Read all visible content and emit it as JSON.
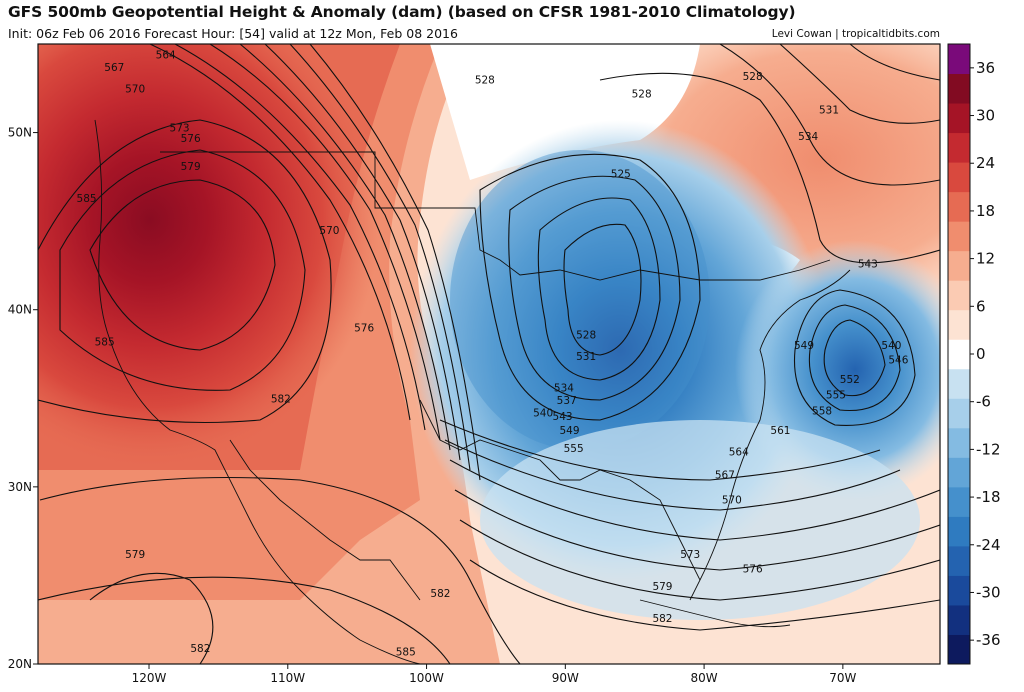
{
  "header": {
    "title": "GFS 500mb Geopotential Height & Anomaly (dam) (based on CFSR 1981-2010 Climatology)",
    "subtitle": "Init: 06z Feb 06 2016   Forecast Hour: [54]   valid at 12z Mon, Feb 08 2016",
    "credit": "Levi Cowan | tropicaltidbits.com"
  },
  "map": {
    "lon_range": [
      -128,
      -63
    ],
    "lat_range": [
      20,
      55
    ],
    "lon_ticks": [
      {
        "value": -120,
        "label": "120W"
      },
      {
        "value": -110,
        "label": "110W"
      },
      {
        "value": -100,
        "label": "100W"
      },
      {
        "value": -90,
        "label": "90W"
      },
      {
        "value": -80,
        "label": "80W"
      },
      {
        "value": -70,
        "label": "70W"
      }
    ],
    "lat_ticks": [
      {
        "value": 20,
        "label": "20N"
      },
      {
        "value": 30,
        "label": "30N"
      },
      {
        "value": 40,
        "label": "40N"
      },
      {
        "value": 50,
        "label": "50N"
      }
    ]
  },
  "colorbar": {
    "ticks": [
      {
        "value": 36,
        "label": "36"
      },
      {
        "value": 30,
        "label": "30"
      },
      {
        "value": 24,
        "label": "24"
      },
      {
        "value": 18,
        "label": "18"
      },
      {
        "value": 12,
        "label": "12"
      },
      {
        "value": 6,
        "label": "6"
      },
      {
        "value": 0,
        "label": "0"
      },
      {
        "value": -6,
        "label": "-6"
      },
      {
        "value": -12,
        "label": "-12"
      },
      {
        "value": -18,
        "label": "-18"
      },
      {
        "value": -24,
        "label": "-24"
      },
      {
        "value": -30,
        "label": "-30"
      },
      {
        "value": -36,
        "label": "-36"
      }
    ],
    "colors": [
      "#0d1a5e",
      "#12307f",
      "#1a4a9c",
      "#2463b0",
      "#2f7bc0",
      "#4590cc",
      "#62a5d7",
      "#84bbe2",
      "#a7cfea",
      "#c8e1f1",
      "#ffffff",
      "#fde3d3",
      "#fbcbb3",
      "#f6ad8f",
      "#f08d6e",
      "#e66b53",
      "#d9493e",
      "#c42a30",
      "#a51426",
      "#820b22",
      "#7a0a7a"
    ],
    "range": [
      -39,
      39
    ]
  },
  "contour_labels": [
    {
      "lon": -122.5,
      "lat": 53.7,
      "text": "567"
    },
    {
      "lon": -118.8,
      "lat": 54.4,
      "text": "564"
    },
    {
      "lon": -121.0,
      "lat": 52.5,
      "text": "570"
    },
    {
      "lon": -117.8,
      "lat": 50.3,
      "text": "573"
    },
    {
      "lon": -117.0,
      "lat": 49.7,
      "text": "576"
    },
    {
      "lon": -117.0,
      "lat": 48.1,
      "text": "579"
    },
    {
      "lon": -124.5,
      "lat": 46.3,
      "text": "585"
    },
    {
      "lon": -107.0,
      "lat": 44.5,
      "text": "570"
    },
    {
      "lon": -104.5,
      "lat": 39.0,
      "text": "576"
    },
    {
      "lon": -110.5,
      "lat": 35.0,
      "text": "582"
    },
    {
      "lon": -123.2,
      "lat": 38.2,
      "text": "585"
    },
    {
      "lon": -121.0,
      "lat": 26.2,
      "text": "579"
    },
    {
      "lon": -116.3,
      "lat": 20.9,
      "text": "582"
    },
    {
      "lon": -101.5,
      "lat": 20.7,
      "text": "585"
    },
    {
      "lon": -99.0,
      "lat": 24.0,
      "text": "582"
    },
    {
      "lon": -95.8,
      "lat": 53.0,
      "text": "528"
    },
    {
      "lon": -84.5,
      "lat": 52.2,
      "text": "528"
    },
    {
      "lon": -86.0,
      "lat": 47.7,
      "text": "525"
    },
    {
      "lon": -88.5,
      "lat": 38.6,
      "text": "528"
    },
    {
      "lon": -88.5,
      "lat": 37.4,
      "text": "531"
    },
    {
      "lon": -90.1,
      "lat": 35.6,
      "text": "534"
    },
    {
      "lon": -89.9,
      "lat": 34.9,
      "text": "537"
    },
    {
      "lon": -91.6,
      "lat": 34.2,
      "text": "540"
    },
    {
      "lon": -90.2,
      "lat": 34.0,
      "text": "543"
    },
    {
      "lon": -89.7,
      "lat": 33.2,
      "text": "549"
    },
    {
      "lon": -89.4,
      "lat": 32.2,
      "text": "555"
    },
    {
      "lon": -66.5,
      "lat": 38.0,
      "text": "540"
    },
    {
      "lon": -66.0,
      "lat": 37.2,
      "text": "546"
    },
    {
      "lon": -72.8,
      "lat": 38.0,
      "text": "549"
    },
    {
      "lon": -69.5,
      "lat": 36.1,
      "text": "552"
    },
    {
      "lon": -70.5,
      "lat": 35.2,
      "text": "555"
    },
    {
      "lon": -71.5,
      "lat": 34.3,
      "text": "558"
    },
    {
      "lon": -74.5,
      "lat": 33.2,
      "text": "561"
    },
    {
      "lon": -77.5,
      "lat": 32.0,
      "text": "564"
    },
    {
      "lon": -78.5,
      "lat": 30.7,
      "text": "567"
    },
    {
      "lon": -78.0,
      "lat": 29.3,
      "text": "570"
    },
    {
      "lon": -81.0,
      "lat": 26.2,
      "text": "573"
    },
    {
      "lon": -76.5,
      "lat": 25.4,
      "text": "576"
    },
    {
      "lon": -83.0,
      "lat": 24.4,
      "text": "579"
    },
    {
      "lon": -83.0,
      "lat": 22.6,
      "text": "582"
    },
    {
      "lon": -76.5,
      "lat": 53.2,
      "text": "528"
    },
    {
      "lon": -71.0,
      "lat": 51.3,
      "text": "531"
    },
    {
      "lon": -72.5,
      "lat": 49.8,
      "text": "534"
    },
    {
      "lon": -68.2,
      "lat": 42.6,
      "text": "543"
    }
  ]
}
